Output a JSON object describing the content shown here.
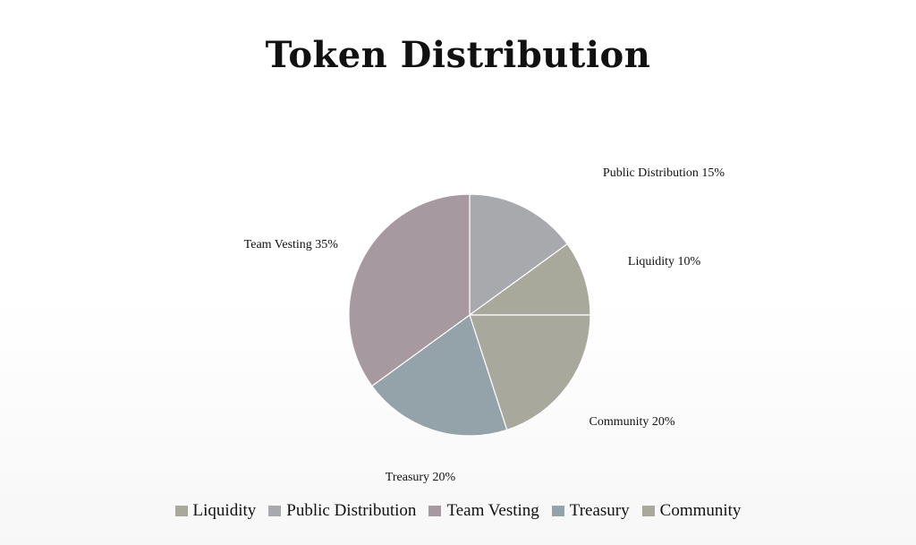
{
  "chart_data": {
    "type": "pie",
    "title": "Token Distribution",
    "slices": [
      {
        "name": "Public Distribution",
        "value": 15,
        "label": "Public Distribution 15%",
        "color": "#a7a9ad"
      },
      {
        "name": "Liquidity",
        "value": 10,
        "label": "Liquidity 10%",
        "color": "#a8a89b"
      },
      {
        "name": "Community",
        "value": 20,
        "label": "Community 20%",
        "color": "#a8a89c"
      },
      {
        "name": "Treasury",
        "value": 20,
        "label": "Treasury 20%",
        "color": "#94a2a9"
      },
      {
        "name": "Team Vesting",
        "value": 35,
        "label": "Team Vesting 35%",
        "color": "#a6999f"
      }
    ],
    "legend": {
      "position": "bottom",
      "entries": [
        {
          "name": "Liquidity",
          "color": "#a8a89b"
        },
        {
          "name": "Public Distribution",
          "color": "#a7a9ad"
        },
        {
          "name": "Team Vesting",
          "color": "#a6999f"
        },
        {
          "name": "Treasury",
          "color": "#94a2a9"
        },
        {
          "name": "Community",
          "color": "#a8a89c"
        }
      ]
    }
  }
}
